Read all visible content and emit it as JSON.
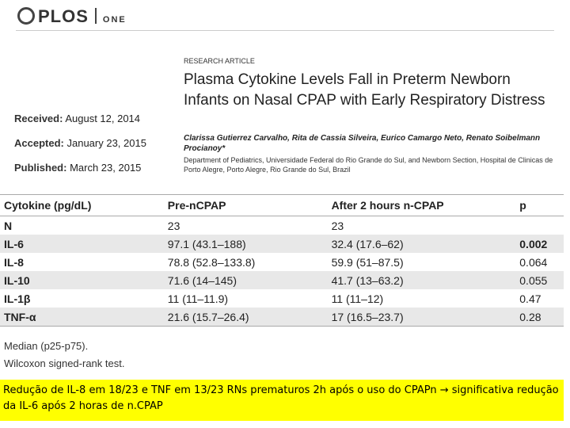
{
  "header": {
    "logo": "PLOS",
    "journal": "ONE"
  },
  "dates": [
    {
      "label": "Received:",
      "value": "August 12, 2014"
    },
    {
      "label": "Accepted:",
      "value": "January 23, 2015"
    },
    {
      "label": "Published:",
      "value": "March 23, 2015"
    }
  ],
  "article": {
    "type": "RESEARCH ARTICLE",
    "title": "Plasma Cytokine Levels Fall in Preterm Newborn Infants on Nasal CPAP with Early Respiratory Distress",
    "authors": "Clarissa Gutierrez Carvalho, Rita de Cassia Silveira, Eurico Camargo Neto, Renato Soibelmann Procianoy*",
    "affiliation": "Department of Pediatrics, Universidade Federal do Rio Grande do Sul, and Newborn Section, Hospital de Clinicas de Porto Alegre, Porto Alegre, Rio Grande do Sul, Brazil"
  },
  "table": {
    "columns": [
      "Cytokine (pg/dL)",
      "Pre-nCPAP",
      "After 2 hours n-CPAP",
      "p"
    ],
    "rows": [
      [
        "N",
        "23",
        "23",
        null
      ],
      [
        "IL-6",
        "97.1 (43.1–188)",
        "32.4 (17.6–62)",
        "0.002"
      ],
      [
        "IL-8",
        "78.8 (52.8–133.8)",
        "59.9 (51–87.5)",
        "0.064"
      ],
      [
        "IL-10",
        "71.6 (14–145)",
        "41.7 (13–63.2)",
        "0.055"
      ],
      [
        "IL-1β",
        "11 (11–11.9)",
        "11 (11–12)",
        "0.47"
      ],
      [
        "TNF-α",
        "21.6 (15.7–26.4)",
        "17 (16.5–23.7)",
        "0.28"
      ]
    ]
  },
  "footnotes": [
    "Median (p25-p75).",
    "Wilcoxon signed-rank test."
  ],
  "caption": "Redução de IL-8 em 18/23 e TNF em 13/23 RNs prematuros 2h após o uso do CPAPn → significativa redução da IL-6 após 2 horas de n.CPAP"
}
